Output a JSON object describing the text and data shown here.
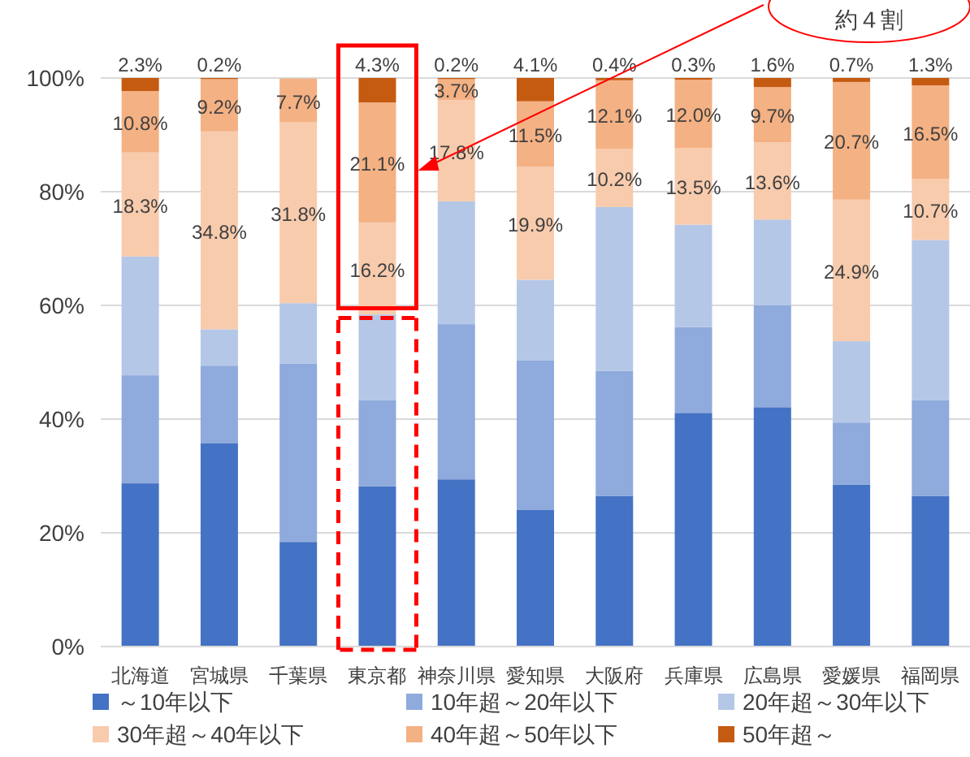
{
  "chart_data": {
    "type": "bar",
    "stacked": true,
    "categories": [
      "北海道",
      "宮城県",
      "千葉県",
      "東京都",
      "神奈川県",
      "愛知県",
      "大阪府",
      "兵庫県",
      "広島県",
      "愛媛県",
      "福岡県"
    ],
    "ylim": [
      0,
      100
    ],
    "yticks": [
      {
        "value": 0,
        "label": "0%"
      },
      {
        "value": 20,
        "label": "20%"
      },
      {
        "value": 40,
        "label": "40%"
      },
      {
        "value": 60,
        "label": "60%"
      },
      {
        "value": 80,
        "label": "80%"
      },
      {
        "value": 100,
        "label": "100%"
      }
    ],
    "grid": "y",
    "legend": "bottom",
    "series": [
      {
        "name": "～10年以下",
        "color": "#4472c4",
        "values": [
          28.7,
          35.8,
          18.4,
          28.2,
          29.4,
          24.0,
          26.5,
          41.1,
          42.1,
          28.5,
          26.5
        ]
      },
      {
        "name": "10年超～20年以下",
        "color": "#8faadc",
        "values": [
          19.0,
          13.6,
          31.4,
          15.1,
          27.3,
          26.3,
          22.0,
          15.1,
          17.9,
          10.9,
          16.8
        ]
      },
      {
        "name": "20年超～30年以下",
        "color": "#b4c7e7",
        "values": [
          20.9,
          6.4,
          10.6,
          15.1,
          21.6,
          14.2,
          28.8,
          18.0,
          15.1,
          14.3,
          28.2
        ]
      },
      {
        "name": "30年超～40年以下",
        "color": "#f8cbad",
        "values": [
          18.3,
          34.8,
          31.8,
          16.2,
          17.8,
          19.9,
          10.2,
          13.5,
          13.6,
          24.9,
          10.7
        ],
        "value_labels": [
          "18.3%",
          "34.8%",
          "31.8%",
          "16.2%",
          "17.8%",
          "19.9%",
          "10.2%",
          "13.5%",
          "13.6%",
          "24.9%",
          "10.7%"
        ]
      },
      {
        "name": "40年超～50年以下",
        "color": "#f4b183",
        "values": [
          10.8,
          9.2,
          7.7,
          21.1,
          3.7,
          11.5,
          12.1,
          12.0,
          9.7,
          20.7,
          16.5
        ],
        "value_labels": [
          "10.8%",
          "9.2%",
          "7.7%",
          "21.1%",
          "3.7%",
          "11.5%",
          "12.1%",
          "12.0%",
          "9.7%",
          "20.7%",
          "16.5%"
        ]
      },
      {
        "name": "50年超～",
        "color": "#c55a11",
        "values": [
          2.3,
          0.2,
          0,
          4.3,
          0.2,
          4.1,
          0.4,
          0.3,
          1.6,
          0.7,
          1.3
        ],
        "value_labels": [
          "2.3%",
          "0.2%",
          null,
          "4.3%",
          "0.2%",
          "4.1%",
          "0.4%",
          "0.3%",
          "1.6%",
          "0.7%",
          "1.3%"
        ]
      }
    ],
    "annotations": [
      "約４割"
    ]
  }
}
